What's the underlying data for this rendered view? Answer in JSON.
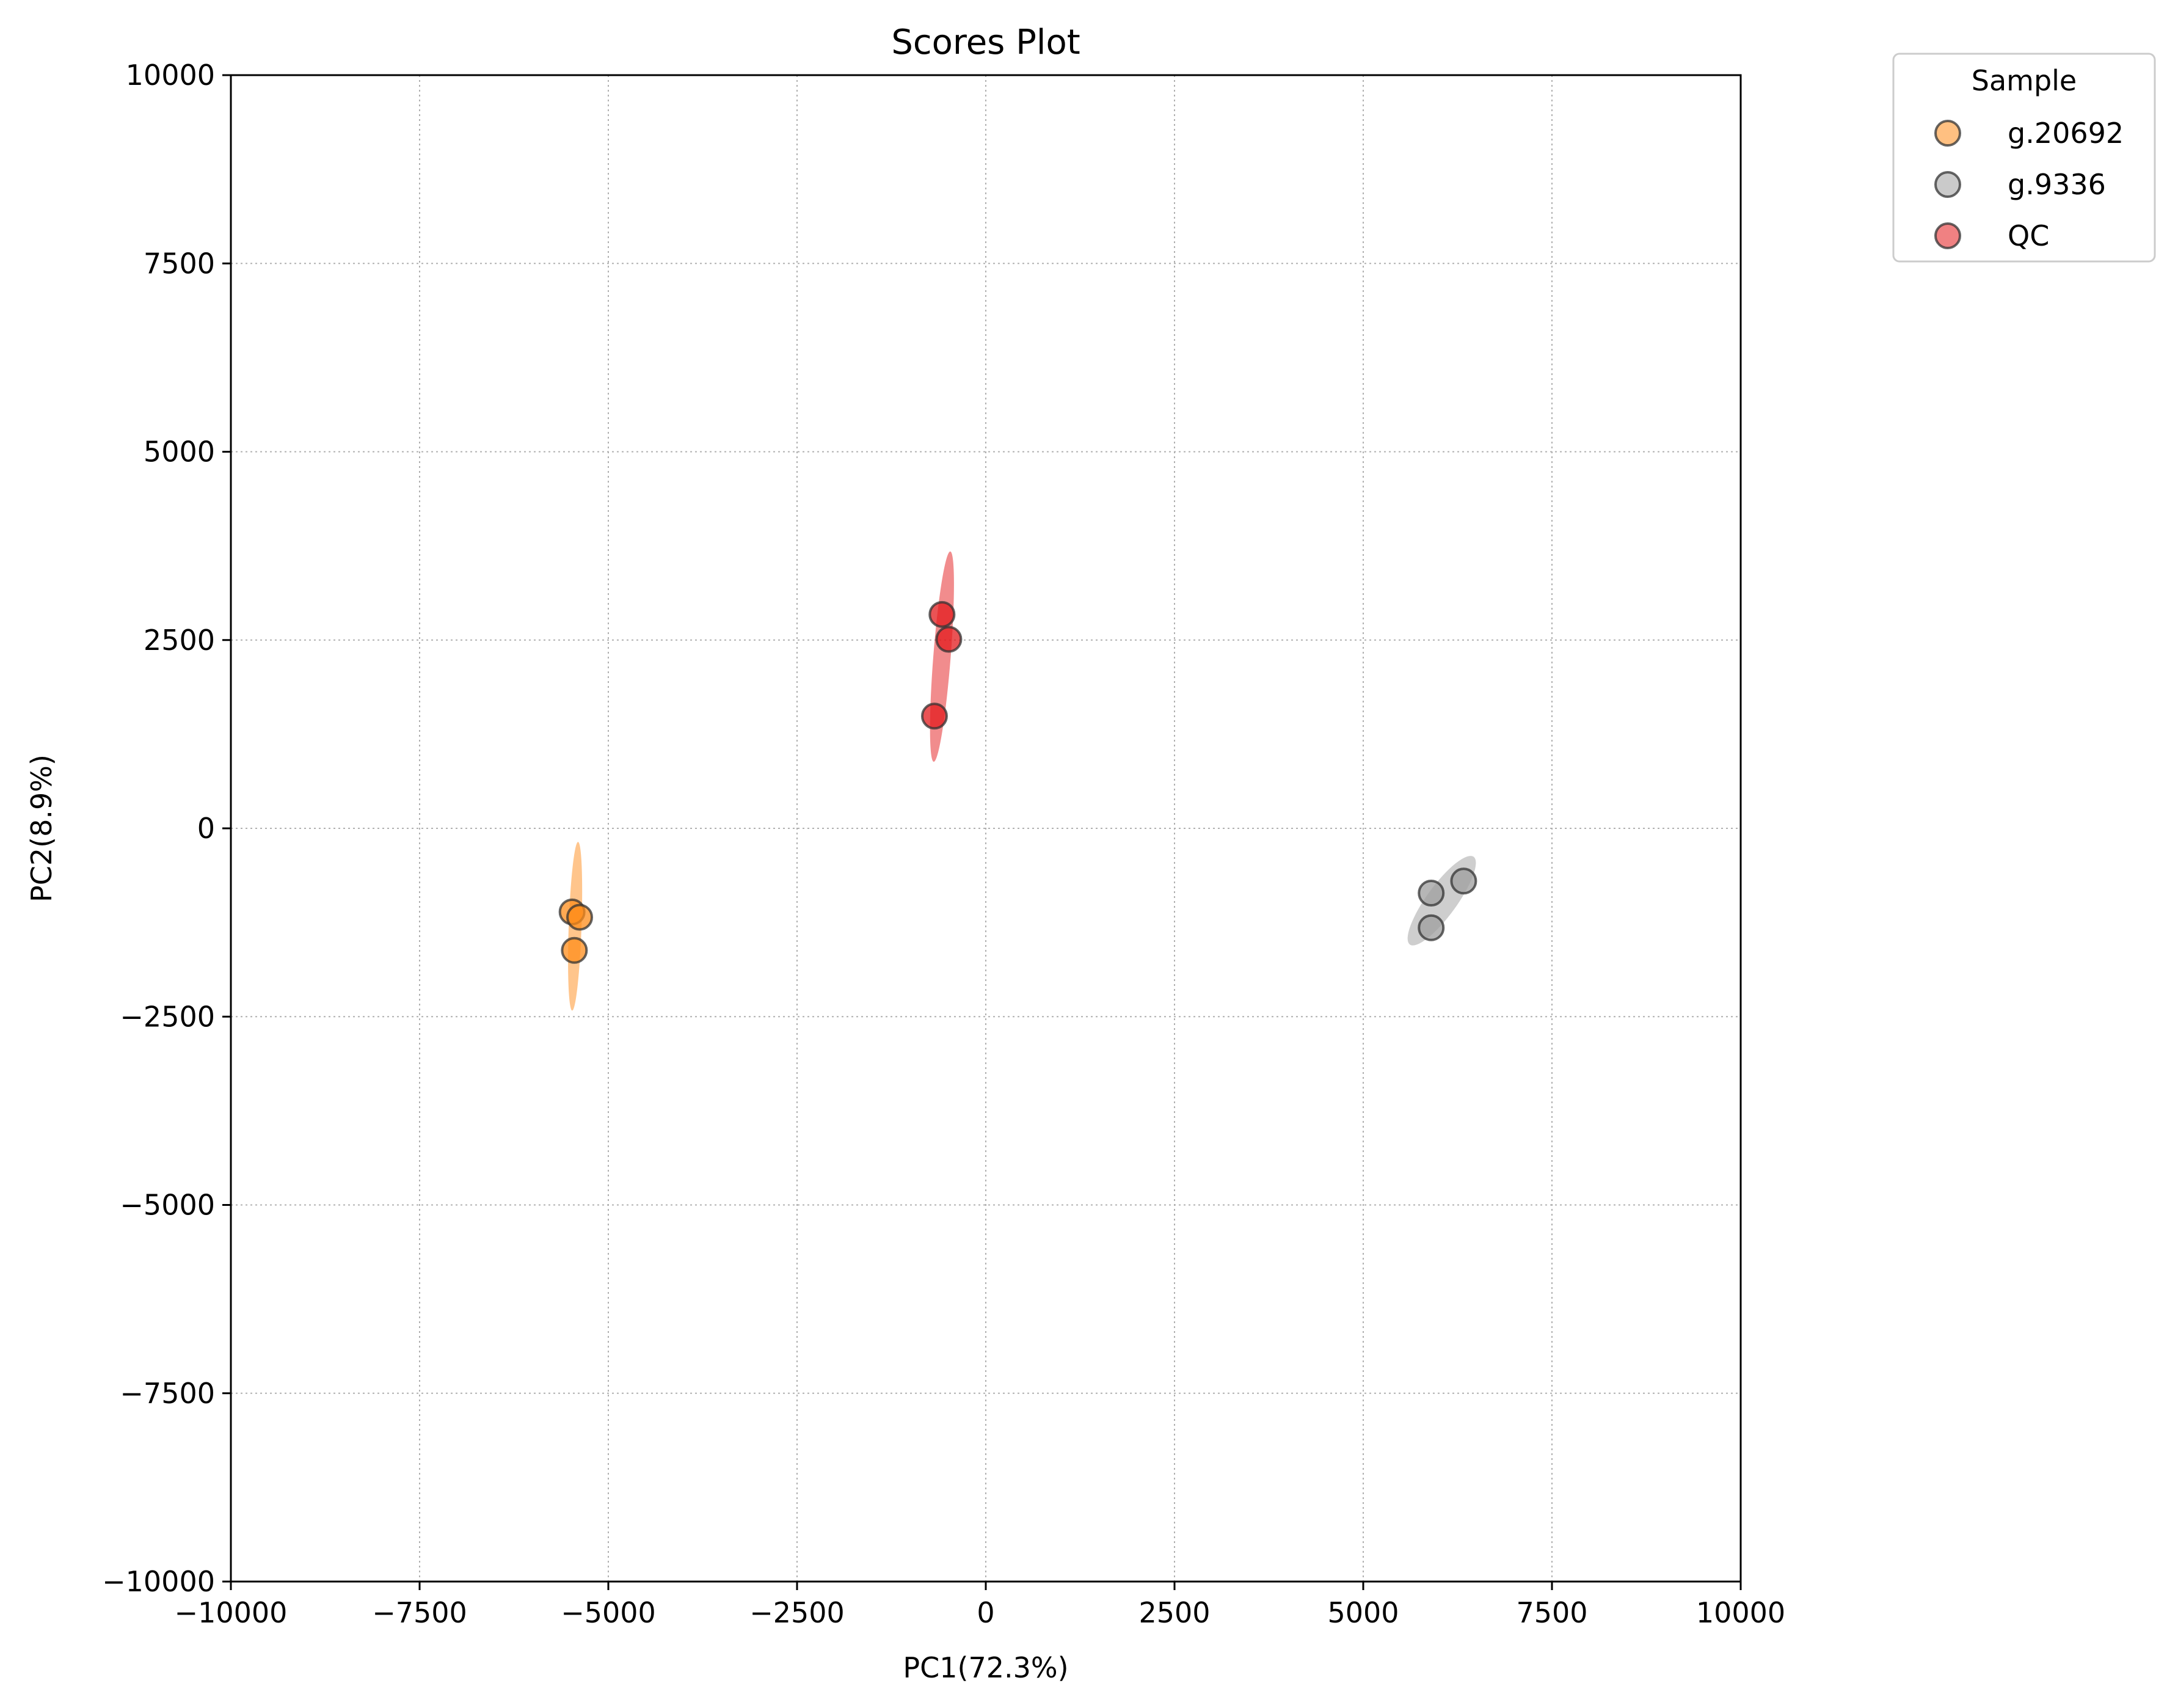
{
  "chart_data": {
    "type": "scatter",
    "title": "Scores Plot",
    "xlabel": "PC1(72.3%)",
    "ylabel": "PC2(8.9%)",
    "xlim": [
      -10000,
      10000
    ],
    "ylim": [
      -10000,
      10000
    ],
    "xticks": [
      -10000,
      -7500,
      -5000,
      -2500,
      0,
      2500,
      5000,
      7500,
      10000
    ],
    "yticks": [
      -10000,
      -7500,
      -5000,
      -2500,
      0,
      2500,
      5000,
      7500,
      10000
    ],
    "xtick_labels": [
      "−10000",
      "−7500",
      "−5000",
      "−2500",
      "0",
      "2500",
      "5000",
      "7500",
      "10000"
    ],
    "ytick_labels": [
      "−10000",
      "−7500",
      "−5000",
      "−2500",
      "0",
      "2500",
      "5000",
      "7500",
      "10000"
    ],
    "grid": true,
    "legend": {
      "title": "Sample",
      "placement": "outside-top-right"
    },
    "series": [
      {
        "name": "g.20692",
        "color": "#ff8c1a",
        "points": [
          {
            "x": -5480,
            "y": -1110
          },
          {
            "x": -5380,
            "y": -1180
          },
          {
            "x": -5450,
            "y": -1620
          }
        ],
        "ellipse": {
          "cx": -5440,
          "cy": -1300,
          "rx": 85,
          "ry": 1120,
          "angle_deg": 2
        }
      },
      {
        "name": "g.9336",
        "color": "#9e9e9e",
        "points": [
          {
            "x": 5900,
            "y": -860
          },
          {
            "x": 6330,
            "y": -700
          },
          {
            "x": 5900,
            "y": -1320
          }
        ],
        "ellipse": {
          "cx": 6040,
          "cy": -960,
          "rx": 200,
          "ry": 720,
          "angle_deg": 36
        }
      },
      {
        "name": "QC",
        "color": "#e31a1c",
        "points": [
          {
            "x": -580,
            "y": 2840
          },
          {
            "x": -490,
            "y": 2510
          },
          {
            "x": -680,
            "y": 1490
          }
        ],
        "ellipse": {
          "cx": -580,
          "cy": 2280,
          "rx": 115,
          "ry": 1400,
          "angle_deg": 4.5
        }
      }
    ]
  }
}
